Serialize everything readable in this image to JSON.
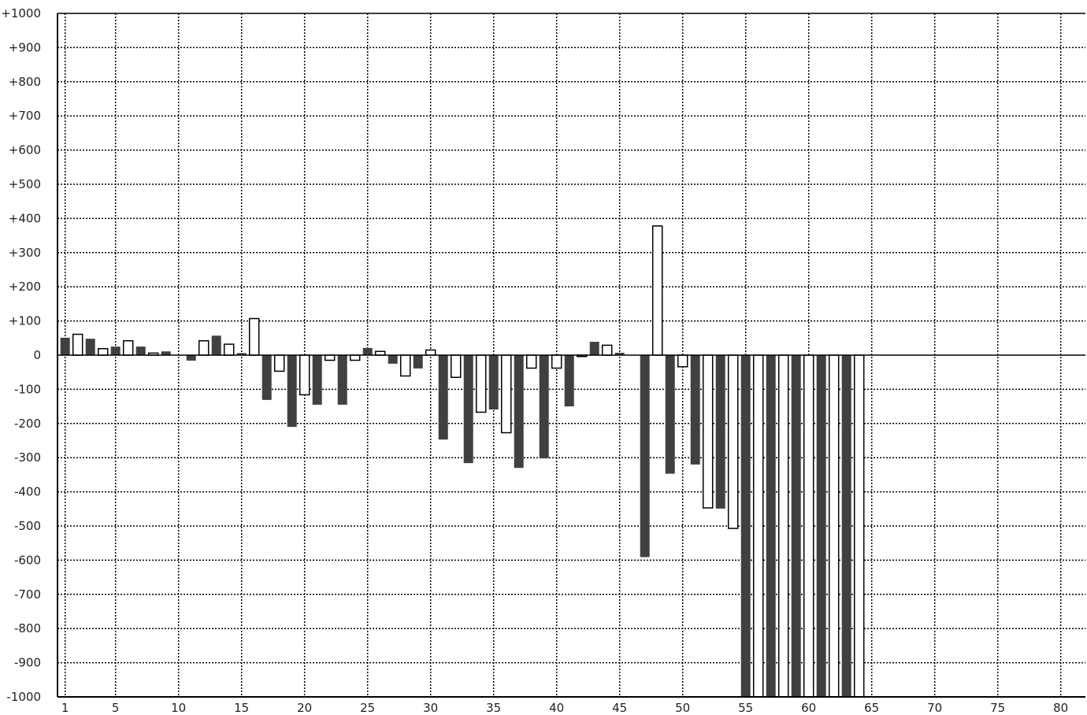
{
  "chart_data": {
    "type": "bar",
    "title": "",
    "xlabel": "",
    "ylabel": "",
    "xlim": [
      1,
      82
    ],
    "ylim": [
      -1000,
      1000
    ],
    "grid": true,
    "x_ticks": [
      "1",
      "5",
      "10",
      "15",
      "20",
      "25",
      "30",
      "35",
      "40",
      "45",
      "50",
      "55",
      "60",
      "65",
      "70",
      "75",
      "80"
    ],
    "y_ticks": [
      "+1000",
      "+900",
      "+800",
      "+700",
      "+600",
      "+500",
      "+400",
      "+300",
      "+200",
      "+100",
      "0",
      "-100",
      "-200",
      "-300",
      "-400",
      "-500",
      "-600",
      "-700",
      "-800",
      "-900",
      "-1000"
    ],
    "colors": {
      "odd_bar": "#404040",
      "even_bar": "#ffffff",
      "bar_outline": "#000000"
    },
    "x": [
      1,
      2,
      3,
      4,
      5,
      6,
      7,
      8,
      9,
      10,
      11,
      12,
      13,
      14,
      15,
      16,
      17,
      18,
      19,
      20,
      21,
      22,
      23,
      24,
      25,
      26,
      27,
      28,
      29,
      30,
      31,
      32,
      33,
      34,
      35,
      36,
      37,
      38,
      39,
      40,
      41,
      42,
      43,
      44,
      45,
      46,
      47,
      48,
      49,
      50,
      51,
      52,
      53,
      54,
      55,
      56,
      57,
      58,
      59,
      60,
      61,
      62,
      63,
      64
    ],
    "values": [
      51,
      61,
      48,
      19,
      25,
      42,
      25,
      6,
      11,
      0,
      -16,
      42,
      57,
      32,
      6,
      107,
      -131,
      -47,
      -210,
      -116,
      -145,
      -15,
      -145,
      -15,
      21,
      11,
      -25,
      -61,
      -39,
      15,
      -247,
      -65,
      -316,
      -167,
      -159,
      -227,
      -330,
      -38,
      -302,
      -38,
      -150,
      -4,
      39,
      29,
      7,
      0,
      -591,
      378,
      -347,
      -34,
      -320,
      -447,
      -449,
      -507,
      -1000,
      -1000,
      -1000,
      -1000,
      -1000,
      -1000,
      -1000,
      -1000,
      -1000,
      -1000
    ]
  }
}
